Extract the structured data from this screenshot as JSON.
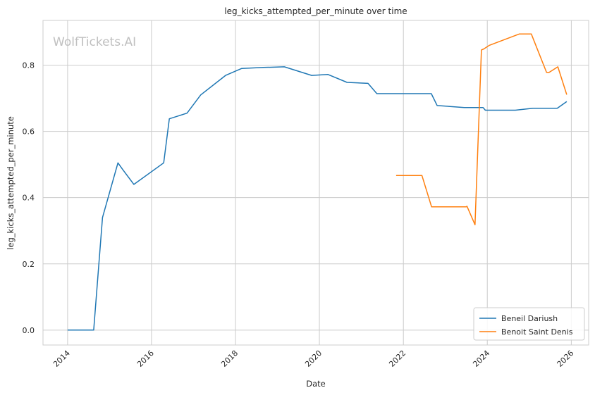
{
  "chart_data": {
    "type": "line",
    "title": "leg_kicks_attempted_per_minute over time",
    "xlabel": "Date",
    "ylabel": "leg_kicks_attempted_per_minute",
    "watermark": "WolfTickets.AI",
    "xlim": [
      "2013-06-01",
      "2026-06-01"
    ],
    "ylim": [
      -0.045,
      0.935
    ],
    "x_ticks": [
      "2014",
      "2016",
      "2018",
      "2020",
      "2022",
      "2024",
      "2026"
    ],
    "y_ticks": [
      "0.0",
      "0.2",
      "0.4",
      "0.6",
      "0.8"
    ],
    "grid": true,
    "legend_position": "lower-right",
    "series": [
      {
        "name": "Beneil Dariush",
        "color": "#1f77b4",
        "points": [
          [
            "2014-01-01",
            0.0
          ],
          [
            "2014-08-16",
            0.0
          ],
          [
            "2014-11-01",
            0.34
          ],
          [
            "2015-03-15",
            0.505
          ],
          [
            "2015-04-25",
            0.485
          ],
          [
            "2015-08-01",
            0.44
          ],
          [
            "2016-04-16",
            0.505
          ],
          [
            "2016-06-04",
            0.638
          ],
          [
            "2016-11-05",
            0.655
          ],
          [
            "2017-03-04",
            0.71
          ],
          [
            "2017-10-07",
            0.769
          ],
          [
            "2018-02-24",
            0.79
          ],
          [
            "2018-09-01",
            0.793
          ],
          [
            "2019-03-02",
            0.795
          ],
          [
            "2019-10-26",
            0.769
          ],
          [
            "2020-03-14",
            0.772
          ],
          [
            "2020-08-29",
            0.748
          ],
          [
            "2021-02-27",
            0.745
          ],
          [
            "2021-05-15",
            0.714
          ],
          [
            "2022-01-01",
            0.714
          ],
          [
            "2022-09-01",
            0.714
          ],
          [
            "2022-10-22",
            0.678
          ],
          [
            "2023-06-15",
            0.672
          ],
          [
            "2023-11-25",
            0.672
          ],
          [
            "2023-12-15",
            0.664
          ],
          [
            "2024-09-01",
            0.664
          ],
          [
            "2025-02-01",
            0.67
          ],
          [
            "2025-09-01",
            0.67
          ],
          [
            "2025-11-22",
            0.69
          ]
        ]
      },
      {
        "name": "Benoit Saint Denis",
        "color": "#ff7f0e",
        "points": [
          [
            "2021-10-30",
            0.467
          ],
          [
            "2022-06-11",
            0.467
          ],
          [
            "2022-09-03",
            0.372
          ],
          [
            "2023-07-01",
            0.372
          ],
          [
            "2023-07-08",
            0.374
          ],
          [
            "2023-09-16",
            0.318
          ],
          [
            "2023-11-11",
            0.846
          ],
          [
            "2023-12-02",
            0.849
          ],
          [
            "2024-01-20",
            0.86
          ],
          [
            "2024-10-05",
            0.894
          ],
          [
            "2025-01-18",
            0.894
          ],
          [
            "2025-05-31",
            0.778
          ],
          [
            "2025-06-21",
            0.778
          ],
          [
            "2025-09-06",
            0.795
          ],
          [
            "2025-11-22",
            0.711
          ]
        ]
      }
    ]
  }
}
